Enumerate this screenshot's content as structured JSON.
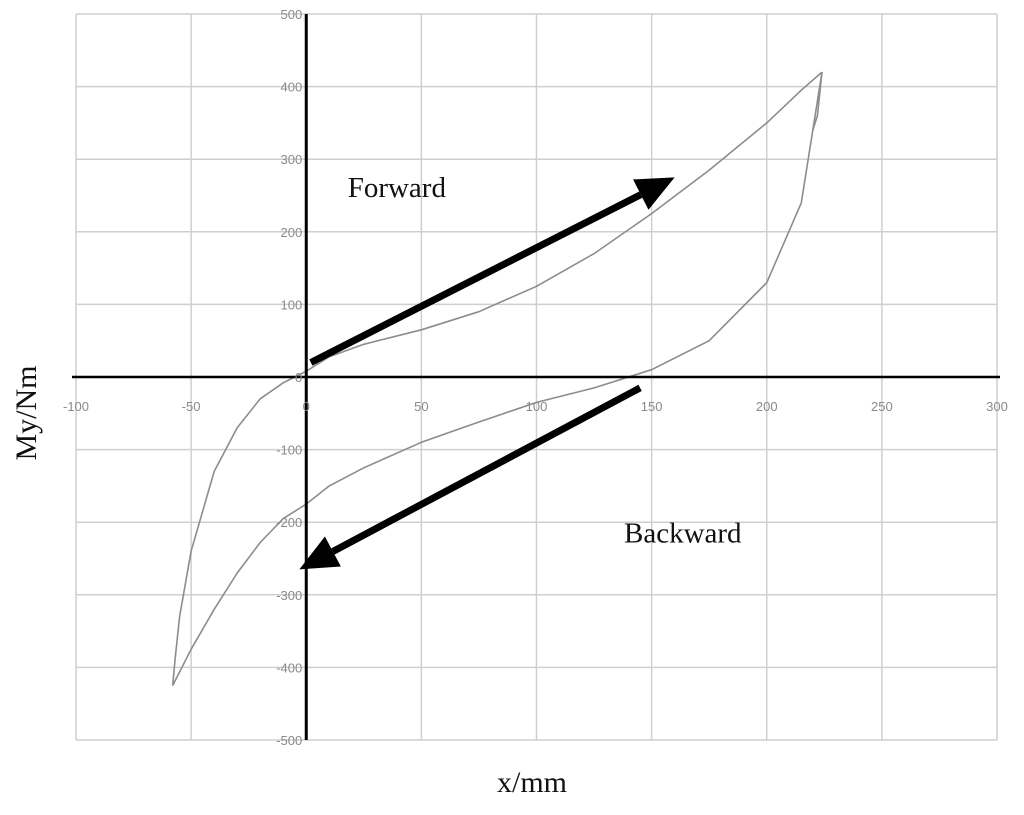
{
  "chart_data": {
    "type": "line",
    "xlabel": "x/mm",
    "ylabel": "My/Nm",
    "xlim": [
      -100,
      300
    ],
    "ylim": [
      -500,
      500
    ],
    "x_ticks": [
      -100,
      -50,
      0,
      50,
      100,
      150,
      200,
      250,
      300
    ],
    "y_ticks": [
      -500,
      -400,
      -300,
      -200,
      -100,
      0,
      100,
      200,
      300,
      400,
      500
    ],
    "x_tick_labels": [
      "-100",
      "-50",
      "0",
      "50",
      "100",
      "150",
      "200",
      "250",
      "300"
    ],
    "y_tick_labels": [
      "-500",
      "-400",
      "-300",
      "-200",
      "-100",
      "0",
      "100",
      "200",
      "300",
      "400",
      "500"
    ],
    "grid": true,
    "series": [
      {
        "x": [
          -58,
          -50,
          -40,
          -30,
          -20,
          -10,
          0,
          10,
          25,
          50,
          75,
          100,
          125,
          150,
          175,
          200,
          215,
          224
        ],
        "y": [
          -425,
          -375,
          -320,
          -270,
          -228,
          -195,
          -175,
          -150,
          -125,
          -90,
          -62,
          -35,
          -15,
          10,
          50,
          130,
          240,
          420
        ]
      },
      {
        "x": [
          -58,
          -57,
          -55,
          -50,
          -40,
          -30,
          -20,
          -10,
          -5,
          0,
          5,
          10,
          25,
          50,
          75,
          100,
          125,
          150,
          175,
          200,
          215,
          224
        ],
        "y": [
          -425,
          -390,
          -330,
          -240,
          -130,
          -70,
          -30,
          -8,
          0,
          8,
          18,
          28,
          45,
          65,
          90,
          125,
          170,
          225,
          285,
          350,
          395,
          420
        ]
      },
      {
        "x": [
          224,
          222,
          220
        ],
        "y": [
          420,
          360,
          340
        ]
      }
    ],
    "annotations": [
      {
        "text": "Forward",
        "x": 18,
        "y": 248,
        "from": [
          2,
          20
        ],
        "to": [
          160,
          275
        ]
      },
      {
        "text": "Backward",
        "x": 138,
        "y": -228,
        "from": [
          145,
          -15
        ],
        "to": [
          -3,
          -265
        ]
      }
    ]
  }
}
